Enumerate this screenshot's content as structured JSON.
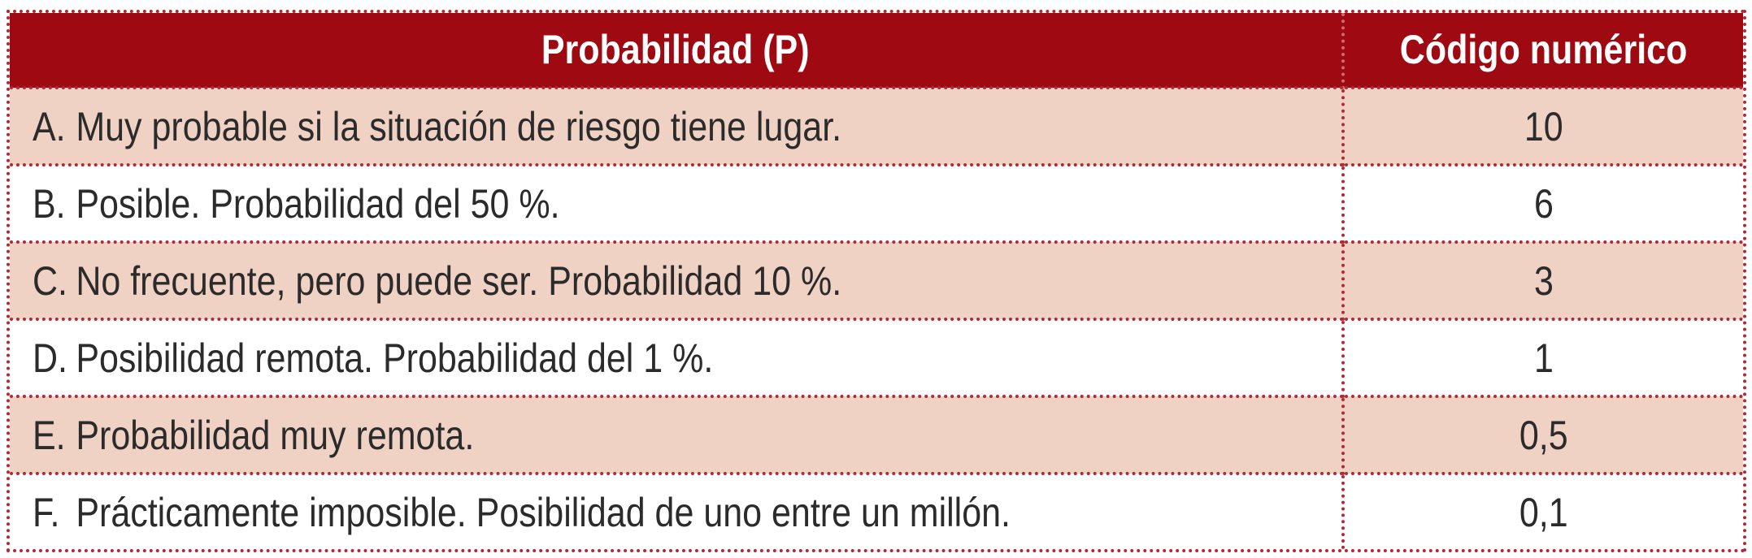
{
  "header": {
    "col1": "Probabilidad (P)",
    "col2": "Código numérico"
  },
  "rows": [
    {
      "letter": "A.",
      "text": "Muy probable si la situación de riesgo tiene lugar.",
      "code": "10"
    },
    {
      "letter": "B.",
      "text": "Posible. Probabilidad del 50 %.",
      "code": "6"
    },
    {
      "letter": "C.",
      "text": "No frecuente, pero puede ser. Probabilidad 10 %.",
      "code": "3"
    },
    {
      "letter": "D.",
      "text": "Posibilidad remota. Probabilidad del 1 %.",
      "code": "1"
    },
    {
      "letter": "E.",
      "text": "Probabilidad muy remota.",
      "code": "0,5"
    },
    {
      "letter": "F.",
      "text": "Prácticamente imposible. Posibilidad de uno entre un millón.",
      "code": "0,1"
    }
  ],
  "colors": {
    "header_bg": "#9e0912",
    "row_shaded": "#f0d2c4",
    "border_dotted": "#b02a35"
  }
}
